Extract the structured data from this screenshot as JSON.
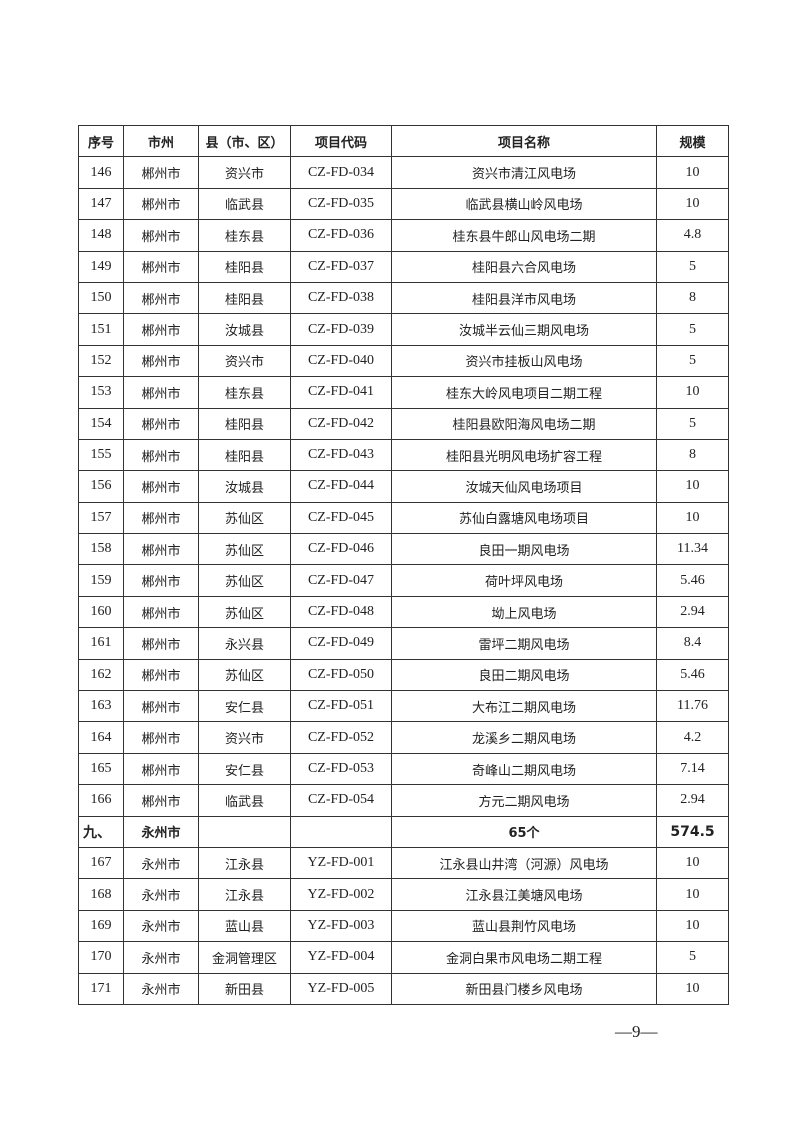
{
  "table": {
    "headers": [
      "序号",
      "市州",
      "县（市、区）",
      "项目代码",
      "项目名称",
      "规模"
    ],
    "rows": [
      [
        "146",
        "郴州市",
        "资兴市",
        "CZ-FD-034",
        "资兴市清江风电场",
        "10"
      ],
      [
        "147",
        "郴州市",
        "临武县",
        "CZ-FD-035",
        "临武县横山岭风电场",
        "10"
      ],
      [
        "148",
        "郴州市",
        "桂东县",
        "CZ-FD-036",
        "桂东县牛郎山风电场二期",
        "4.8"
      ],
      [
        "149",
        "郴州市",
        "桂阳县",
        "CZ-FD-037",
        "桂阳县六合风电场",
        "5"
      ],
      [
        "150",
        "郴州市",
        "桂阳县",
        "CZ-FD-038",
        "桂阳县洋市风电场",
        "8"
      ],
      [
        "151",
        "郴州市",
        "汝城县",
        "CZ-FD-039",
        "汝城半云仙三期风电场",
        "5"
      ],
      [
        "152",
        "郴州市",
        "资兴市",
        "CZ-FD-040",
        "资兴市挂板山风电场",
        "5"
      ],
      [
        "153",
        "郴州市",
        "桂东县",
        "CZ-FD-041",
        "桂东大岭风电项目二期工程",
        "10"
      ],
      [
        "154",
        "郴州市",
        "桂阳县",
        "CZ-FD-042",
        "桂阳县欧阳海风电场二期",
        "5"
      ],
      [
        "155",
        "郴州市",
        "桂阳县",
        "CZ-FD-043",
        "桂阳县光明风电场扩容工程",
        "8"
      ],
      [
        "156",
        "郴州市",
        "汝城县",
        "CZ-FD-044",
        "汝城天仙风电场项目",
        "10"
      ],
      [
        "157",
        "郴州市",
        "苏仙区",
        "CZ-FD-045",
        "苏仙白露塘风电场项目",
        "10"
      ],
      [
        "158",
        "郴州市",
        "苏仙区",
        "CZ-FD-046",
        "良田一期风电场",
        "11.34"
      ],
      [
        "159",
        "郴州市",
        "苏仙区",
        "CZ-FD-047",
        "荷叶坪风电场",
        "5.46"
      ],
      [
        "160",
        "郴州市",
        "苏仙区",
        "CZ-FD-048",
        "坳上风电场",
        "2.94"
      ],
      [
        "161",
        "郴州市",
        "永兴县",
        "CZ-FD-049",
        "雷坪二期风电场",
        "8.4"
      ],
      [
        "162",
        "郴州市",
        "苏仙区",
        "CZ-FD-050",
        "良田二期风电场",
        "5.46"
      ],
      [
        "163",
        "郴州市",
        "安仁县",
        "CZ-FD-051",
        "大布江二期风电场",
        "11.76"
      ],
      [
        "164",
        "郴州市",
        "资兴市",
        "CZ-FD-052",
        "龙溪乡二期风电场",
        "4.2"
      ],
      [
        "165",
        "郴州市",
        "安仁县",
        "CZ-FD-053",
        "奇峰山二期风电场",
        "7.14"
      ],
      [
        "166",
        "郴州市",
        "临武县",
        "CZ-FD-054",
        "方元二期风电场",
        "2.94"
      ],
      [
        "九、",
        "永州市",
        "",
        "",
        "65个",
        "574.5"
      ],
      [
        "167",
        "永州市",
        "江永县",
        "YZ-FD-001",
        "江永县山井湾（河源）风电场",
        "10"
      ],
      [
        "168",
        "永州市",
        "江永县",
        "YZ-FD-002",
        "江永县江美塘风电场",
        "10"
      ],
      [
        "169",
        "永州市",
        "蓝山县",
        "YZ-FD-003",
        "蓝山县荆竹风电场",
        "10"
      ],
      [
        "170",
        "永州市",
        "金洞管理区",
        "YZ-FD-004",
        "金洞白果市风电场二期工程",
        "5"
      ],
      [
        "171",
        "永州市",
        "新田县",
        "YZ-FD-005",
        "新田县门楼乡风电场",
        "10"
      ]
    ],
    "section_row_index": 21
  },
  "footer": {
    "page_number": "—9—"
  }
}
